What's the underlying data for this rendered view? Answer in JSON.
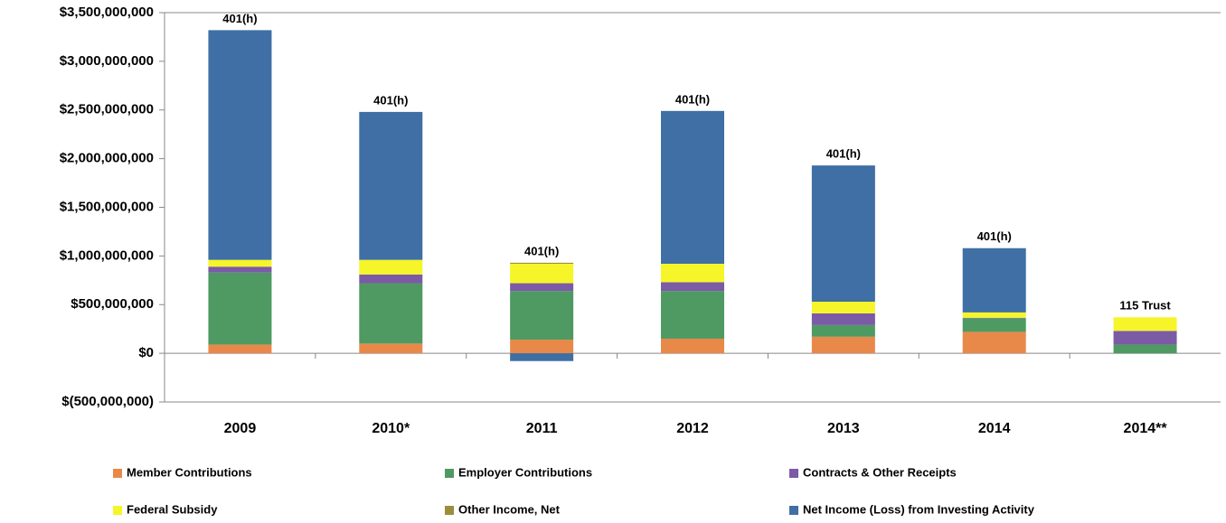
{
  "chart_data": {
    "type": "stacked_bar",
    "categories": [
      "2009",
      "2010*",
      "2011",
      "2012",
      "2013",
      "2014",
      "2014**"
    ],
    "bar_labels": [
      "401(h)",
      "401(h)",
      "401(h)",
      "401(h)",
      "401(h)",
      "401(h)",
      "115 Trust"
    ],
    "series": [
      {
        "name": "Member Contributions",
        "color": "#e8894a",
        "values": [
          90000000,
          100000000,
          140000000,
          150000000,
          170000000,
          220000000,
          0
        ]
      },
      {
        "name": "Employer Contributions",
        "color": "#4e9a62",
        "values": [
          740000000,
          620000000,
          500000000,
          490000000,
          120000000,
          140000000,
          90000000
        ]
      },
      {
        "name": "Contracts & Other Receipts",
        "color": "#7b5aa6",
        "values": [
          60000000,
          90000000,
          80000000,
          90000000,
          120000000,
          5000000,
          140000000
        ]
      },
      {
        "name": "Federal Subsidy",
        "color": "#f5f52a",
        "values": [
          70000000,
          150000000,
          200000000,
          190000000,
          120000000,
          55000000,
          140000000
        ]
      },
      {
        "name": "Other Income, Net",
        "color": "#9c8d3c",
        "values": [
          0,
          0,
          10000000,
          0,
          0,
          0,
          0
        ]
      },
      {
        "name": "Net Income (Loss) from Investing Activity",
        "color": "#3f6fa4",
        "values": [
          2360000000,
          1520000000,
          -80000000,
          1570000000,
          1400000000,
          660000000,
          0
        ]
      }
    ],
    "ylim": [
      -500000000,
      3500000000
    ],
    "yticks": [
      {
        "value": -500000000,
        "label": "$(500,000,000)"
      },
      {
        "value": 0,
        "label": "$0"
      },
      {
        "value": 500000000,
        "label": "$500,000,000"
      },
      {
        "value": 1000000000,
        "label": "$1,000,000,000"
      },
      {
        "value": 1500000000,
        "label": "$1,500,000,000"
      },
      {
        "value": 2000000000,
        "label": "$2,000,000,000"
      },
      {
        "value": 2500000000,
        "label": "$2,500,000,000"
      },
      {
        "value": 3000000000,
        "label": "$3,000,000,000"
      },
      {
        "value": 3500000000,
        "label": "$3,500,000,000"
      }
    ],
    "legend_position": "bottom"
  }
}
